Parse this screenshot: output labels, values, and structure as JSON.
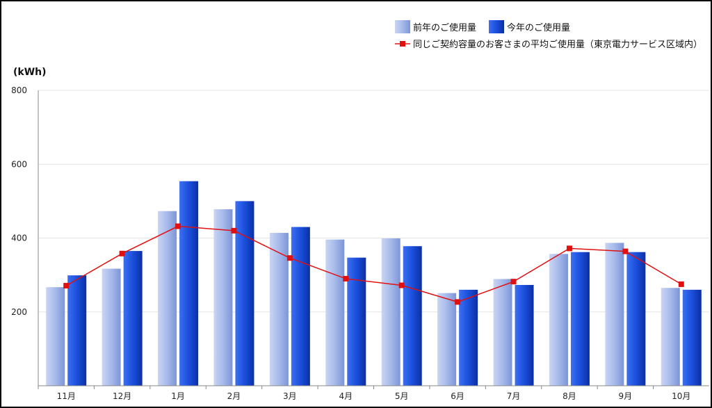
{
  "chart_data": {
    "type": "bar",
    "ylabel": "(kWh)",
    "ylim": [
      0,
      800
    ],
    "yticks": [
      200,
      400,
      600,
      800
    ],
    "categories": [
      "11月",
      "12月",
      "1月",
      "2月",
      "3月",
      "4月",
      "5月",
      "6月",
      "7月",
      "8月",
      "9月",
      "10月"
    ],
    "series": [
      {
        "name": "前年のご使用量",
        "kind": "bar",
        "color": "#9fb4e8",
        "values": [
          267,
          317,
          473,
          478,
          414,
          396,
          399,
          251,
          289,
          357,
          387,
          265
        ]
      },
      {
        "name": "今年のご使用量",
        "kind": "bar",
        "color": "#1a4fdc",
        "values": [
          299,
          365,
          554,
          500,
          430,
          347,
          378,
          260,
          273,
          362,
          362,
          260
        ]
      },
      {
        "name": "同じご契約容量のお客さまの平均ご使用量（東京電力サービス区域内）",
        "kind": "line",
        "color": "#e01010",
        "values": [
          271,
          358,
          432,
          420,
          346,
          290,
          272,
          227,
          282,
          372,
          364,
          275
        ]
      }
    ],
    "legend_position": "top-right",
    "grid": true
  }
}
